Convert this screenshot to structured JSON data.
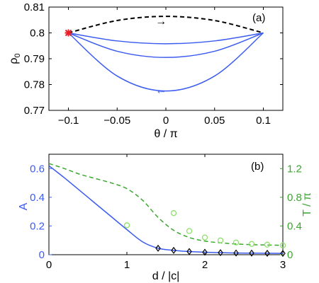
{
  "chart_data": [
    {
      "type": "line",
      "panel_label": "(a)",
      "xlabel": "θ / π",
      "ylabel": "ρ0",
      "ylabel_main": "ρ",
      "ylabel_sub": "0",
      "xlim": [
        -0.12,
        0.12
      ],
      "ylim": [
        0.77,
        0.81
      ],
      "xticks": [
        -0.1,
        -0.05,
        0,
        0.05,
        0.1
      ],
      "xtick_labels": [
        "−0.1",
        "−0.05",
        "0",
        "0.05",
        "0.1"
      ],
      "yticks": [
        0.77,
        0.78,
        0.79,
        0.8,
        0.81
      ],
      "ytick_labels": [
        "0.77",
        "0.78",
        "0.79",
        "0.8",
        "0.81"
      ],
      "series": [
        {
          "style": "dashed",
          "color": "#000000",
          "x": [
            -0.1,
            -0.05,
            0,
            0.05,
            0.1
          ],
          "y": [
            0.8,
            0.8048,
            0.8064,
            0.8048,
            0.8
          ]
        },
        {
          "style": "solid",
          "color": "#3c5cf0",
          "x": [
            -0.1,
            -0.05,
            0,
            0.05,
            0.1
          ],
          "y": [
            0.8,
            0.7969,
            0.7958,
            0.7969,
            0.8
          ]
        },
        {
          "style": "solid",
          "color": "#3c5cf0",
          "x": [
            -0.1,
            -0.05,
            0,
            0.05,
            0.1
          ],
          "y": [
            0.8,
            0.7929,
            0.7905,
            0.7929,
            0.8
          ]
        },
        {
          "style": "solid",
          "color": "#3c5cf0",
          "x": [
            -0.1,
            -0.05,
            0,
            0.05,
            0.1
          ],
          "y": [
            0.8,
            0.7833,
            0.7775,
            0.7833,
            0.8
          ]
        }
      ],
      "start_marker": {
        "x": -0.1,
        "y": 0.8,
        "color": "#e8202a"
      },
      "arrows": [
        {
          "text": "→",
          "x": -0.005,
          "y": 0.8045,
          "color": "#000000"
        },
        {
          "text": "←",
          "x": -0.005,
          "y": 0.7778,
          "color": "#3c5cf0"
        }
      ]
    },
    {
      "type": "line",
      "panel_label": "(b)",
      "xlabel": "d / |c|",
      "ylabel_left": "A",
      "ylabel_right": "T / π",
      "xlim": [
        0,
        3
      ],
      "ylim_left": [
        0,
        0.7
      ],
      "ylim_right": [
        0,
        1.4
      ],
      "xticks": [
        0,
        1,
        2,
        3
      ],
      "xtick_labels": [
        "0",
        "1",
        "2",
        "3"
      ],
      "yticks_left": [
        0,
        0.2,
        0.4,
        0.6
      ],
      "ytick_labels_left": [
        "0",
        "0.2",
        "0.4",
        "0.6"
      ],
      "yticks_right": [
        0,
        0.4,
        0.8,
        1.2
      ],
      "ytick_labels_right": [
        "0",
        "0.4",
        "0.8",
        "1.2"
      ],
      "left_color": "#3c5cf0",
      "right_color": "#3aa82e",
      "A_curve": {
        "x": [
          0,
          0.2,
          0.4,
          0.6,
          0.8,
          1.0,
          1.2,
          1.4,
          1.6,
          1.8,
          2.0,
          2.2,
          2.4,
          2.6,
          2.8,
          3.0
        ],
        "y": [
          0.62,
          0.535,
          0.445,
          0.355,
          0.265,
          0.175,
          0.09,
          0.045,
          0.03,
          0.022,
          0.017,
          0.014,
          0.012,
          0.011,
          0.01,
          0.009
        ]
      },
      "A_markers": {
        "x": [
          1.4,
          1.6,
          1.8,
          2.0,
          2.2,
          2.4,
          2.6,
          2.8,
          3.0
        ],
        "y": [
          0.045,
          0.03,
          0.022,
          0.017,
          0.014,
          0.012,
          0.011,
          0.01,
          0.009
        ]
      },
      "T_curve": {
        "x": [
          0,
          0.2,
          0.4,
          0.6,
          0.8,
          1.0,
          1.2,
          1.4,
          1.6,
          1.8,
          2.0,
          2.2,
          2.4,
          2.6,
          2.8,
          3.0
        ],
        "y": [
          1.27,
          1.2,
          1.12,
          1.06,
          1.0,
          0.92,
          0.76,
          0.52,
          0.34,
          0.24,
          0.19,
          0.165,
          0.15,
          0.14,
          0.135,
          0.13
        ]
      },
      "T_markers": {
        "x": [
          1.0,
          1.6,
          1.8,
          2.0,
          2.2,
          2.4,
          2.6,
          2.8,
          3.0
        ],
        "y": [
          0.41,
          0.58,
          0.33,
          0.24,
          0.2,
          0.17,
          0.15,
          0.14,
          0.13
        ]
      }
    }
  ]
}
